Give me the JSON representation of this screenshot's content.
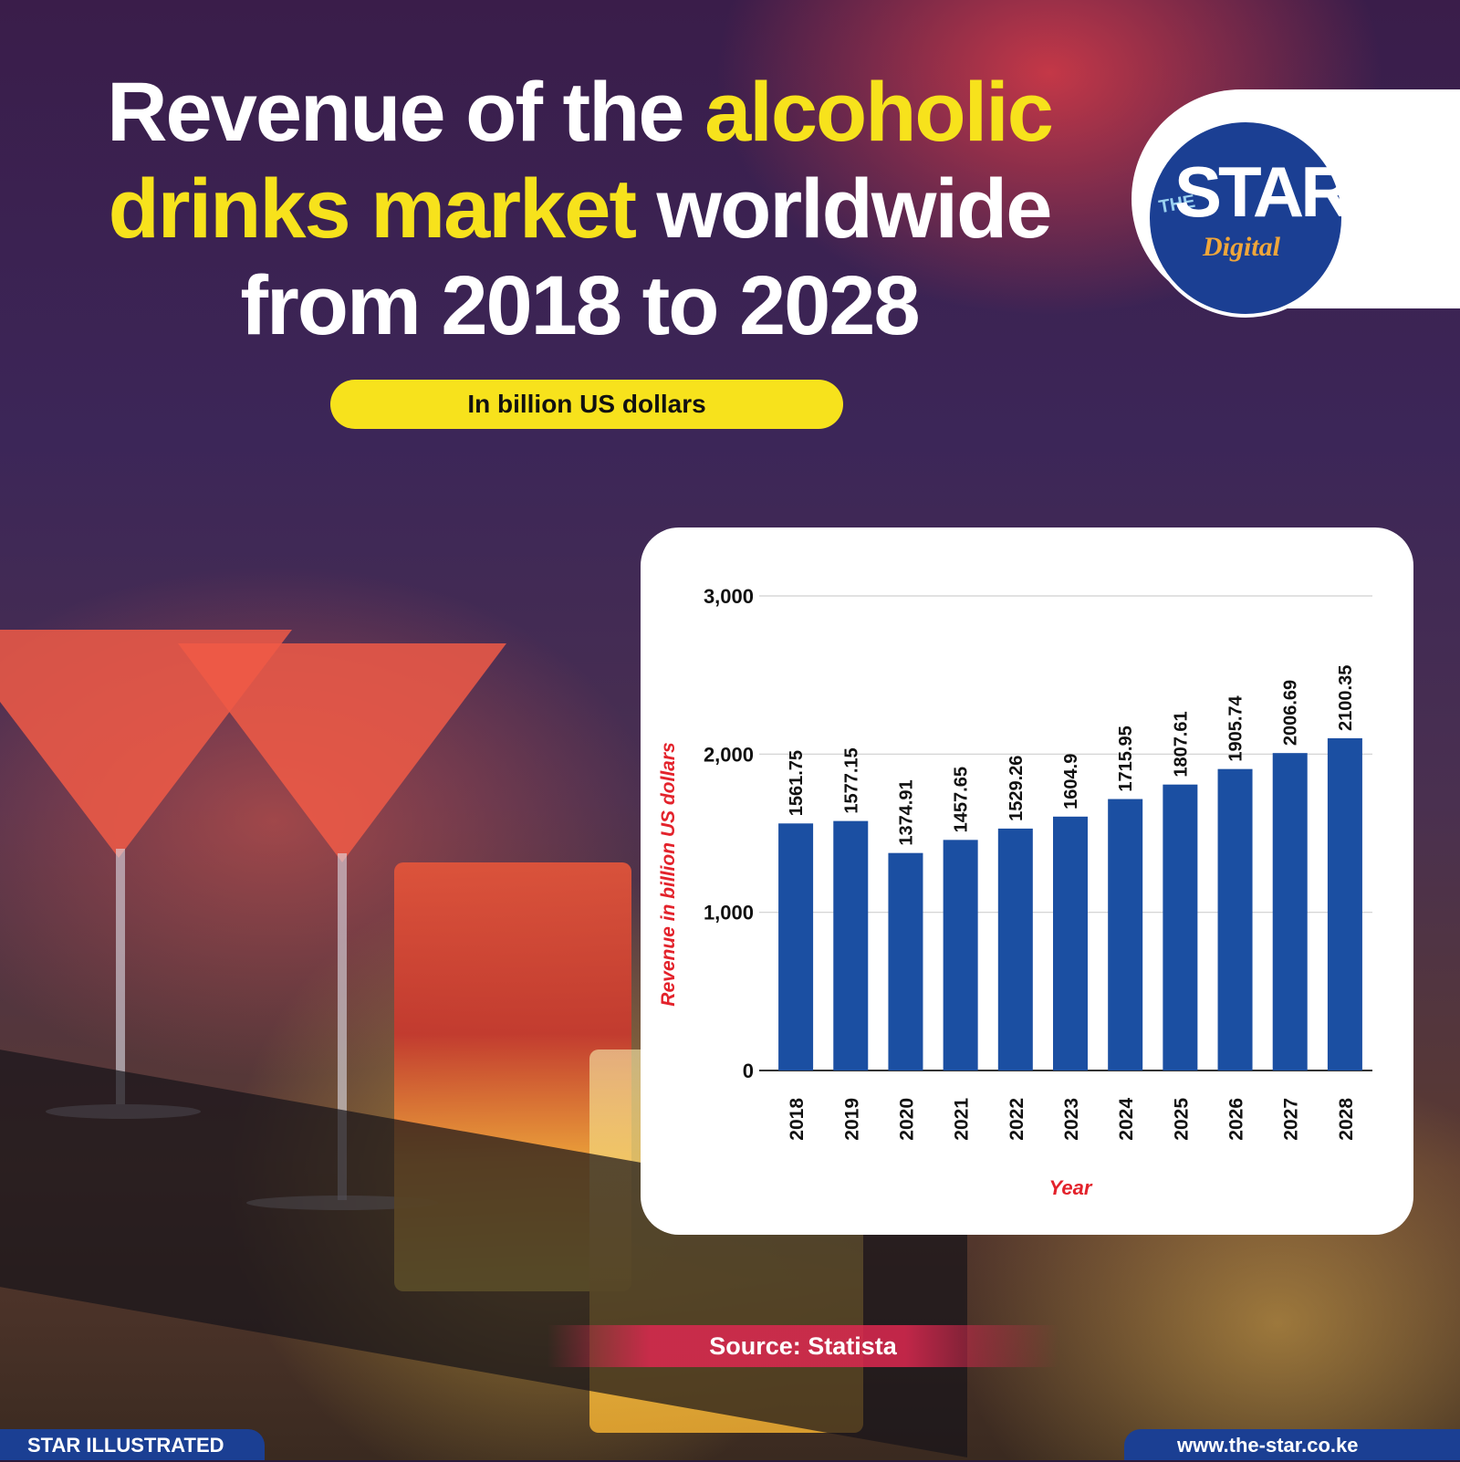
{
  "title": {
    "part1": "Revenue of the ",
    "highlight1": "alcoholic",
    "highlight2": "drinks market",
    "part2": " worldwide",
    "line3": "from 2018 to 2028"
  },
  "subtitle": "In billion US dollars",
  "logo": {
    "the": "THE",
    "star": "STAR",
    "digital": "Digital"
  },
  "source": "Source: Statista",
  "footer": {
    "left": "STAR ILLUSTRATED",
    "right": "www.the-star.co.ke"
  },
  "colors": {
    "bar": "#1b4fa2",
    "axis_title": "#e3222b",
    "highlight": "#f7e21c",
    "brand": "#1b3f93"
  },
  "chart_data": {
    "type": "bar",
    "categories": [
      "2018",
      "2019",
      "2020",
      "2021",
      "2022",
      "2023",
      "2024",
      "2025",
      "2026",
      "2027",
      "2028"
    ],
    "values": [
      1561.75,
      1577.15,
      1374.91,
      1457.65,
      1529.26,
      1604.9,
      1715.95,
      1807.61,
      1905.74,
      2006.69,
      2100.35
    ],
    "value_labels": [
      "1561.75",
      "1577.15",
      "1374.91",
      "1457.65",
      "1529.26",
      "1604.9",
      "1715.95",
      "1807.61",
      "1905.74",
      "2006.69",
      "2100.35"
    ],
    "xlabel": "Year",
    "ylabel": "Revenue in billion US dollars",
    "ylim": [
      0,
      3000
    ],
    "yticks": [
      0,
      1000,
      2000,
      3000
    ],
    "ytick_labels": [
      "0",
      "1,000",
      "2,000",
      "3,000"
    ],
    "grid": true
  }
}
